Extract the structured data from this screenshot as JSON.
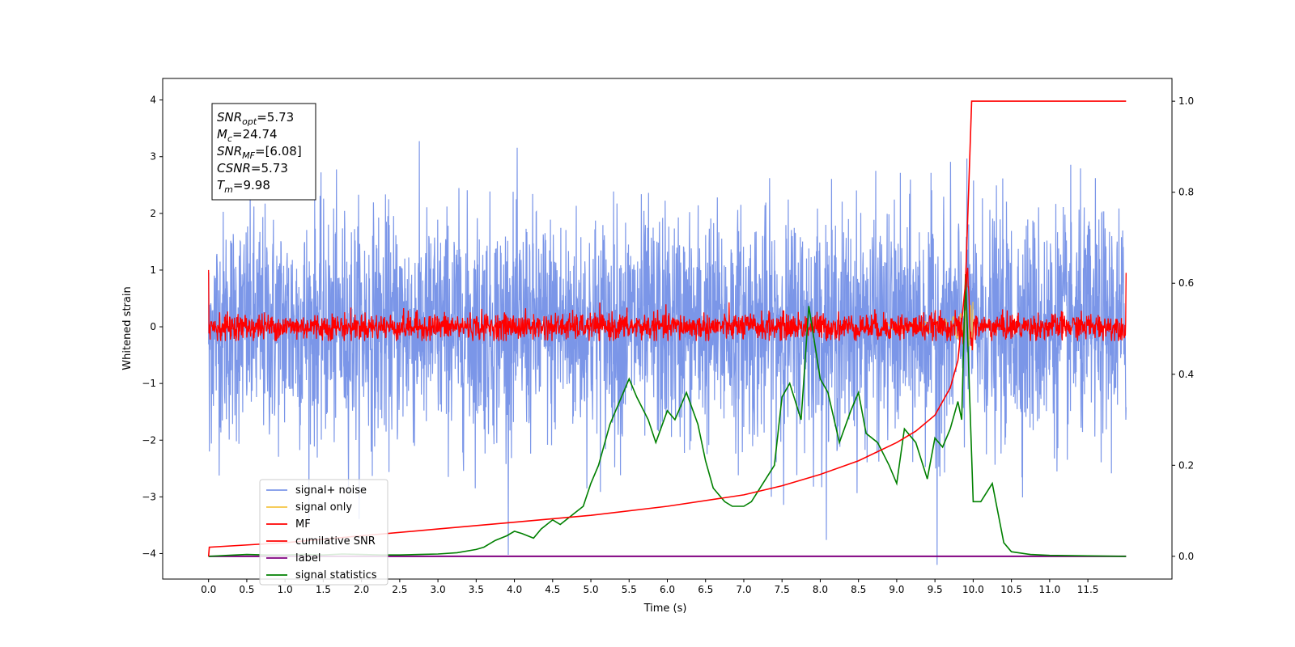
{
  "chart_data": {
    "type": "line",
    "xlabel": "Time (s)",
    "ylabel": "Whitened strain",
    "xlim": [
      -0.6,
      12.6
    ],
    "ylim": [
      -4.45,
      4.38
    ],
    "y2lim": [
      -0.05,
      1.05
    ],
    "x_ticks": [
      "0.0",
      "0.5",
      "1.0",
      "1.5",
      "2.0",
      "2.5",
      "3.0",
      "3.5",
      "4.0",
      "4.5",
      "5.0",
      "5.5",
      "6.0",
      "6.5",
      "7.0",
      "7.5",
      "8.0",
      "8.5",
      "9.0",
      "9.5",
      "10.0",
      "10.5",
      "11.0",
      "11.5"
    ],
    "y_ticks": [
      "4",
      "3",
      "2",
      "1",
      "0",
      "−1",
      "−2",
      "−3",
      "−4"
    ],
    "y2_ticks": [
      "1.0",
      "0.8",
      "0.6",
      "0.4",
      "0.2",
      "0.0"
    ],
    "annotation_lines": [
      {
        "sym": "SNR",
        "sub": "opt",
        "value": "=5.73"
      },
      {
        "sym": "M",
        "sub": "c",
        "value": "=24.74"
      },
      {
        "sym": "SNR",
        "sub": "MF",
        "value": "=[6.08]"
      },
      {
        "sym": "CSNR",
        "sub": "",
        "value": "=5.73"
      },
      {
        "sym": "T",
        "sub": "m",
        "value": "=9.98"
      }
    ],
    "legend_position": "lower-left",
    "series": [
      {
        "name": "signal+ noise",
        "color": "#7b96e8",
        "axis": "left",
        "noise_sigma": 1.0
      },
      {
        "name": "signal only",
        "color": "#f5c542",
        "axis": "left"
      },
      {
        "name": "MF",
        "color": "#ff0000",
        "axis": "left",
        "noise_sigma": 0.12
      },
      {
        "name": "cumilative SNR",
        "color": "#ff0000",
        "axis": "right",
        "x": [
          0.0,
          0.01,
          1.0,
          2.0,
          3.0,
          4.0,
          5.0,
          6.0,
          7.0,
          7.5,
          8.0,
          8.5,
          9.0,
          9.25,
          9.5,
          9.7,
          9.8,
          9.9,
          9.98,
          10.0,
          12.0
        ],
        "values": [
          0.0,
          0.02,
          0.03,
          0.045,
          0.06,
          0.075,
          0.09,
          0.11,
          0.135,
          0.155,
          0.18,
          0.21,
          0.25,
          0.275,
          0.31,
          0.37,
          0.43,
          0.6,
          1.0,
          1.0,
          1.0
        ]
      },
      {
        "name": "label",
        "color": "#800080",
        "axis": "right",
        "x": [
          0.0,
          12.0
        ],
        "values": [
          0.0,
          0.0
        ]
      },
      {
        "name": "signal statistics",
        "color": "#008000",
        "axis": "right",
        "x": [
          0.0,
          0.25,
          0.5,
          0.75,
          1.0,
          1.25,
          1.5,
          1.75,
          2.0,
          2.25,
          2.5,
          2.75,
          3.0,
          3.25,
          3.5,
          3.6,
          3.75,
          3.9,
          4.0,
          4.1,
          4.25,
          4.35,
          4.5,
          4.6,
          4.75,
          4.9,
          5.0,
          5.1,
          5.25,
          5.4,
          5.5,
          5.6,
          5.75,
          5.85,
          6.0,
          6.1,
          6.25,
          6.4,
          6.5,
          6.6,
          6.75,
          6.85,
          7.0,
          7.1,
          7.25,
          7.4,
          7.5,
          7.6,
          7.75,
          7.85,
          8.0,
          8.1,
          8.25,
          8.4,
          8.5,
          8.6,
          8.75,
          8.9,
          9.0,
          9.1,
          9.25,
          9.4,
          9.5,
          9.6,
          9.7,
          9.8,
          9.85,
          9.9,
          10.0,
          10.1,
          10.25,
          10.4,
          10.5,
          10.75,
          11.0,
          11.5,
          12.0
        ],
        "values": [
          0.0,
          0.002,
          0.004,
          0.003,
          0.003,
          0.004,
          0.003,
          0.005,
          0.004,
          0.003,
          0.003,
          0.004,
          0.005,
          0.008,
          0.015,
          0.02,
          0.035,
          0.045,
          0.055,
          0.05,
          0.04,
          0.06,
          0.08,
          0.07,
          0.09,
          0.11,
          0.16,
          0.2,
          0.29,
          0.35,
          0.39,
          0.35,
          0.3,
          0.25,
          0.32,
          0.3,
          0.36,
          0.29,
          0.21,
          0.15,
          0.12,
          0.11,
          0.11,
          0.12,
          0.16,
          0.2,
          0.35,
          0.38,
          0.3,
          0.55,
          0.39,
          0.36,
          0.25,
          0.32,
          0.36,
          0.27,
          0.25,
          0.2,
          0.16,
          0.28,
          0.25,
          0.17,
          0.26,
          0.24,
          0.28,
          0.34,
          0.3,
          0.62,
          0.12,
          0.12,
          0.16,
          0.03,
          0.01,
          0.004,
          0.002,
          0.001,
          0.0
        ]
      }
    ]
  }
}
